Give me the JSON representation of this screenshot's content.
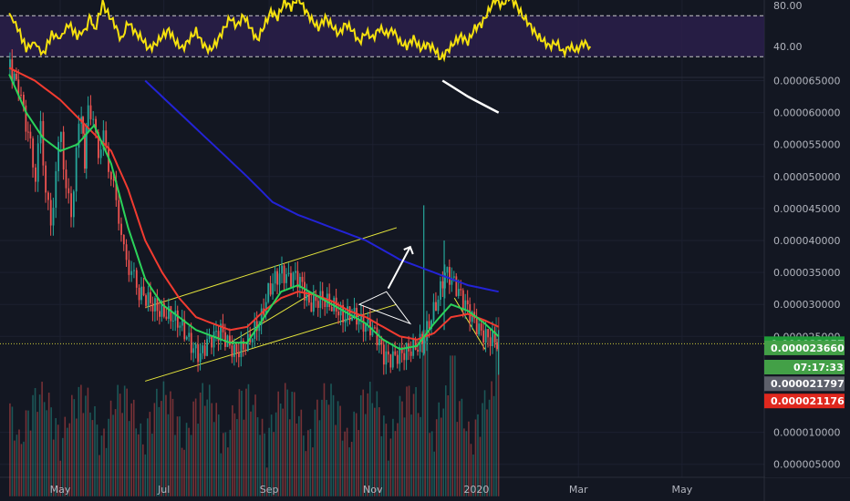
{
  "chart_data": {
    "type": "candlestick",
    "colors": {
      "background": "#131722",
      "candle_up": "#26a69a",
      "candle_down": "#ef5350",
      "ma_fast": "#2bd35a",
      "ma_mid": "#f23b30",
      "ma_slow": "#2323d6",
      "ma_long": "#ffffff",
      "rsi_line": "#f5e10e",
      "rsi_fill": "#2a1f4a",
      "channel": "#e6e63c",
      "annotation": "#ffffff",
      "last_price_line": "#c9c93a"
    },
    "x_axis": {
      "ticks": [
        "May",
        "Jul",
        "Sep",
        "Nov",
        "2020",
        "Mar",
        "May"
      ],
      "tick_days": [
        0,
        61,
        123,
        184,
        245,
        305,
        366
      ]
    },
    "rsi_panel": {
      "ticks": [
        "80.00",
        "40.00"
      ],
      "tick_values": [
        80,
        40
      ],
      "overbought": 70,
      "oversold": 30,
      "ylim": [
        10,
        90
      ],
      "points": [
        [
          -30,
          72
        ],
        [
          -25,
          58
        ],
        [
          -20,
          38
        ],
        [
          -15,
          44
        ],
        [
          -10,
          32
        ],
        [
          -5,
          52
        ],
        [
          0,
          48
        ],
        [
          5,
          62
        ],
        [
          10,
          50
        ],
        [
          15,
          57
        ],
        [
          18,
          70
        ],
        [
          20,
          54
        ],
        [
          25,
          82
        ],
        [
          28,
          72
        ],
        [
          32,
          62
        ],
        [
          36,
          46
        ],
        [
          40,
          64
        ],
        [
          44,
          54
        ],
        [
          48,
          48
        ],
        [
          52,
          38
        ],
        [
          56,
          42
        ],
        [
          60,
          50
        ],
        [
          64,
          56
        ],
        [
          68,
          44
        ],
        [
          72,
          38
        ],
        [
          76,
          47
        ],
        [
          80,
          55
        ],
        [
          84,
          42
        ],
        [
          88,
          36
        ],
        [
          92,
          44
        ],
        [
          96,
          56
        ],
        [
          100,
          68
        ],
        [
          104,
          60
        ],
        [
          108,
          70
        ],
        [
          112,
          58
        ],
        [
          116,
          46
        ],
        [
          120,
          60
        ],
        [
          124,
          74
        ],
        [
          128,
          68
        ],
        [
          132,
          84
        ],
        [
          136,
          78
        ],
        [
          140,
          88
        ],
        [
          144,
          76
        ],
        [
          148,
          66
        ],
        [
          152,
          58
        ],
        [
          156,
          68
        ],
        [
          160,
          60
        ],
        [
          164,
          52
        ],
        [
          168,
          62
        ],
        [
          172,
          56
        ],
        [
          176,
          44
        ],
        [
          180,
          54
        ],
        [
          184,
          48
        ],
        [
          188,
          58
        ],
        [
          192,
          52
        ],
        [
          196,
          56
        ],
        [
          200,
          44
        ],
        [
          204,
          40
        ],
        [
          208,
          48
        ],
        [
          212,
          38
        ],
        [
          216,
          42
        ],
        [
          220,
          38
        ],
        [
          224,
          28
        ],
        [
          228,
          36
        ],
        [
          232,
          44
        ],
        [
          236,
          50
        ],
        [
          240,
          44
        ],
        [
          244,
          58
        ],
        [
          248,
          62
        ],
        [
          252,
          74
        ],
        [
          256,
          86
        ],
        [
          260,
          80
        ],
        [
          264,
          88
        ],
        [
          268,
          82
        ],
        [
          272,
          70
        ],
        [
          276,
          62
        ],
        [
          280,
          52
        ],
        [
          284,
          46
        ],
        [
          288,
          40
        ],
        [
          292,
          44
        ],
        [
          296,
          34
        ],
        [
          300,
          40
        ],
        [
          304,
          36
        ],
        [
          308,
          44
        ],
        [
          312,
          40
        ]
      ]
    },
    "price_panel": {
      "ticks": [
        "0.000065000",
        "0.000060000",
        "0.000055000",
        "0.000050000",
        "0.000045000",
        "0.000040000",
        "0.000035000",
        "0.000030000",
        "0.000025000",
        "0.000010000",
        "0.000005000"
      ],
      "tick_values": [
        65,
        60,
        55,
        50,
        45,
        40,
        35,
        30,
        25,
        10,
        5
      ],
      "value_unit_note": "",
      "price_tags": [
        {
          "label": "0.000023857",
          "value": 23.857,
          "color": "#1f9c38"
        },
        {
          "label": "0.000023660",
          "value": 23.2,
          "color": "#43a047"
        },
        {
          "label": "07:17:33",
          "value": 20.2,
          "color": "#43a047"
        },
        {
          "label": "0.000021797",
          "value": 17.6,
          "color": "#5d606b"
        },
        {
          "label": "0.000021176",
          "value": 14.9,
          "color": "#e0281e"
        }
      ],
      "last_price": 23.857,
      "close_path": [
        [
          -30,
          67
        ],
        [
          -25,
          64
        ],
        [
          -22,
          60
        ],
        [
          -18,
          55
        ],
        [
          -15,
          50
        ],
        [
          -12,
          58
        ],
        [
          -9,
          48
        ],
        [
          -6,
          42
        ],
        [
          -3,
          51
        ],
        [
          0,
          57
        ],
        [
          3,
          48
        ],
        [
          6,
          44
        ],
        [
          9,
          54
        ],
        [
          12,
          60
        ],
        [
          14,
          52
        ],
        [
          16,
          62
        ],
        [
          19,
          58
        ],
        [
          22,
          54
        ],
        [
          25,
          56
        ],
        [
          28,
          52
        ],
        [
          31,
          48
        ],
        [
          34,
          44
        ],
        [
          37,
          38
        ],
        [
          40,
          36
        ],
        [
          43,
          34
        ],
        [
          46,
          32
        ],
        [
          50,
          31
        ],
        [
          54,
          30
        ],
        [
          58,
          29
        ],
        [
          62,
          28.5
        ],
        [
          66,
          28
        ],
        [
          70,
          27
        ],
        [
          74,
          25
        ],
        [
          78,
          23
        ],
        [
          82,
          22
        ],
        [
          86,
          24
        ],
        [
          90,
          25
        ],
        [
          94,
          26
        ],
        [
          98,
          24
        ],
        [
          102,
          22.5
        ],
        [
          106,
          23
        ],
        [
          110,
          24
        ],
        [
          114,
          26
        ],
        [
          118,
          28
        ],
        [
          122,
          32
        ],
        [
          126,
          34
        ],
        [
          130,
          35
        ],
        [
          134,
          34
        ],
        [
          138,
          34.5
        ],
        [
          142,
          33
        ],
        [
          146,
          30
        ],
        [
          150,
          30.5
        ],
        [
          154,
          31
        ],
        [
          158,
          30
        ],
        [
          162,
          29.5
        ],
        [
          166,
          28
        ],
        [
          170,
          28.5
        ],
        [
          174,
          28
        ],
        [
          178,
          27
        ],
        [
          182,
          26.5
        ],
        [
          186,
          25
        ],
        [
          190,
          22
        ],
        [
          194,
          21.5
        ],
        [
          198,
          22
        ],
        [
          202,
          22.5
        ],
        [
          206,
          23
        ],
        [
          210,
          23.5
        ],
        [
          214,
          25
        ],
        [
          218,
          28
        ],
        [
          222,
          31
        ],
        [
          226,
          35
        ],
        [
          230,
          34
        ],
        [
          234,
          32
        ],
        [
          238,
          30
        ],
        [
          242,
          28
        ],
        [
          246,
          26
        ],
        [
          250,
          25
        ],
        [
          254,
          24.5
        ],
        [
          258,
          23.857
        ]
      ],
      "spikes": [
        [
          214,
          45.5,
          22
        ],
        [
          226,
          40,
          26
        ],
        [
          258,
          26,
          19
        ]
      ],
      "ma_fast": [
        [
          -30,
          66
        ],
        [
          -20,
          60
        ],
        [
          -10,
          56
        ],
        [
          0,
          54
        ],
        [
          10,
          55
        ],
        [
          20,
          58
        ],
        [
          30,
          52
        ],
        [
          40,
          42
        ],
        [
          50,
          34
        ],
        [
          60,
          30
        ],
        [
          70,
          28
        ],
        [
          80,
          26
        ],
        [
          90,
          25
        ],
        [
          100,
          24
        ],
        [
          110,
          24
        ],
        [
          120,
          28
        ],
        [
          130,
          32
        ],
        [
          140,
          33
        ],
        [
          150,
          31.5
        ],
        [
          160,
          30
        ],
        [
          170,
          28.5
        ],
        [
          180,
          27
        ],
        [
          190,
          24.5
        ],
        [
          200,
          23
        ],
        [
          210,
          23.5
        ],
        [
          220,
          27
        ],
        [
          230,
          30
        ],
        [
          240,
          29
        ],
        [
          250,
          27
        ],
        [
          258,
          25
        ]
      ],
      "ma_mid": [
        [
          -30,
          67
        ],
        [
          -15,
          65
        ],
        [
          0,
          62
        ],
        [
          15,
          58
        ],
        [
          30,
          54
        ],
        [
          40,
          48
        ],
        [
          50,
          40
        ],
        [
          60,
          35
        ],
        [
          70,
          31
        ],
        [
          80,
          28
        ],
        [
          90,
          27
        ],
        [
          100,
          26
        ],
        [
          110,
          26.5
        ],
        [
          120,
          29
        ],
        [
          130,
          31
        ],
        [
          140,
          32
        ],
        [
          150,
          31.5
        ],
        [
          160,
          30.5
        ],
        [
          170,
          29
        ],
        [
          180,
          28
        ],
        [
          190,
          26.5
        ],
        [
          200,
          25
        ],
        [
          210,
          24.5
        ],
        [
          220,
          25.5
        ],
        [
          230,
          28
        ],
        [
          240,
          28.5
        ],
        [
          250,
          27.5
        ],
        [
          258,
          26.5
        ]
      ],
      "ma_slow": [
        [
          50,
          65
        ],
        [
          70,
          60
        ],
        [
          90,
          55
        ],
        [
          110,
          50
        ],
        [
          125,
          46
        ],
        [
          140,
          44
        ],
        [
          160,
          42
        ],
        [
          180,
          40
        ],
        [
          200,
          37
        ],
        [
          220,
          35
        ],
        [
          240,
          33
        ],
        [
          258,
          32
        ]
      ],
      "ma_long": [
        [
          225,
          65
        ],
        [
          240,
          62.5
        ],
        [
          258,
          60
        ]
      ],
      "channel_upper": [
        [
          50,
          29.5
        ],
        [
          198,
          42
        ]
      ],
      "channel_lower": [
        [
          50,
          18
        ],
        [
          198,
          30
        ]
      ],
      "channel_mid": [
        [
          100,
          24
        ],
        [
          150,
          32
        ]
      ],
      "arrow": [
        [
          193,
          32.5
        ],
        [
          198,
          35
        ],
        [
          206,
          39
        ]
      ],
      "triangle": [
        [
          176,
          30
        ],
        [
          192,
          32
        ],
        [
          206,
          27
        ]
      ],
      "wedge": [
        [
          232,
          32
        ],
        [
          248,
          24
        ]
      ]
    },
    "volume_panel": {
      "ylim": [
        0,
        30
      ]
    }
  }
}
